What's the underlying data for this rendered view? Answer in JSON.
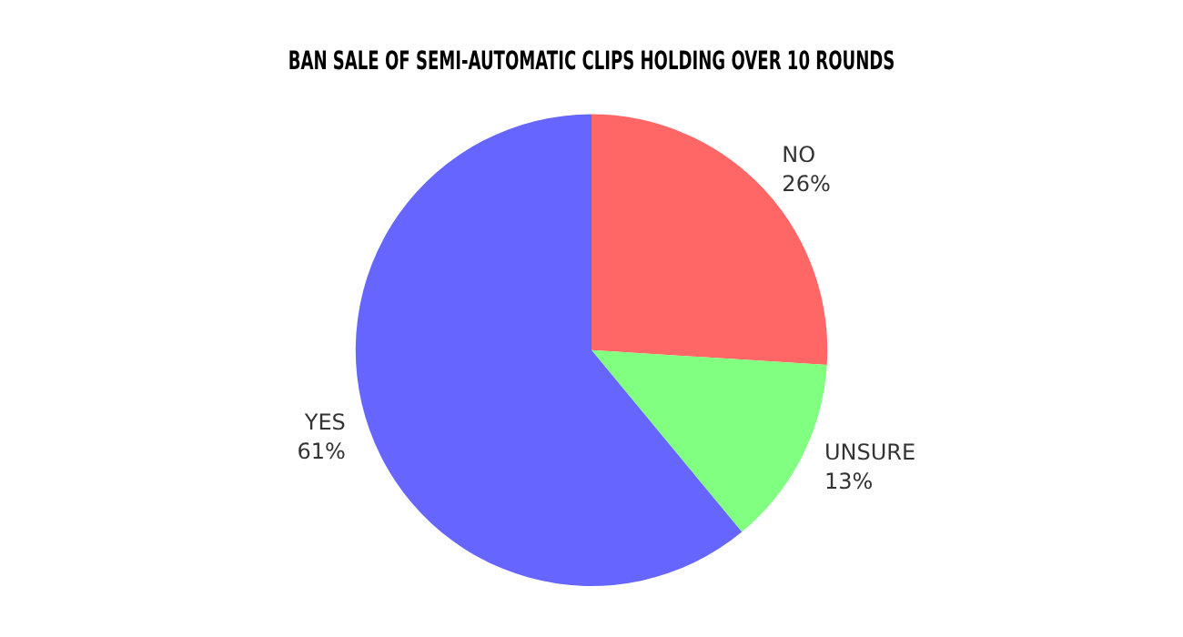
{
  "chart_data": {
    "type": "pie",
    "title": "BAN SALE OF SEMI-AUTOMATIC CLIPS HOLDING OVER 10 ROUNDS",
    "categories": [
      "NO",
      "UNSURE",
      "YES"
    ],
    "values": [
      26,
      13,
      61
    ],
    "value_labels": [
      "26%",
      "13%",
      "61%"
    ],
    "colors": [
      "#ff6666",
      "#80ff80",
      "#6666ff"
    ],
    "legend": false
  }
}
